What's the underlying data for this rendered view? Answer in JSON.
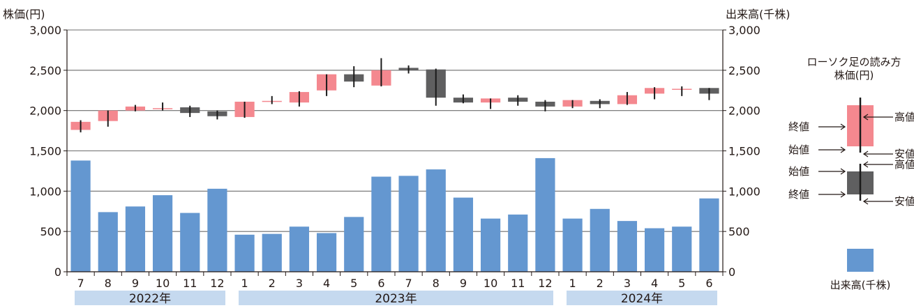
{
  "chart_data": {
    "type": "candlestick+bar",
    "left_axis_title": "株価(円)",
    "right_axis_title": "出来高(千株)",
    "ylim": [
      0,
      3000
    ],
    "yticks": [
      "0",
      "500",
      "1,000",
      "1,500",
      "2,000",
      "2,500",
      "3,000"
    ],
    "ytick_values": [
      0,
      500,
      1000,
      1500,
      2000,
      2500,
      3000
    ],
    "grid": true,
    "months": [
      "7",
      "8",
      "9",
      "10",
      "11",
      "12",
      "1",
      "2",
      "3",
      "4",
      "5",
      "6",
      "7",
      "8",
      "9",
      "10",
      "11",
      "12",
      "1",
      "2",
      "3",
      "4",
      "5",
      "6"
    ],
    "years": [
      {
        "label": "2022年",
        "start": 0,
        "end": 5
      },
      {
        "label": "2023年",
        "start": 6,
        "end": 17
      },
      {
        "label": "2024年",
        "start": 18,
        "end": 23
      }
    ],
    "candles": [
      {
        "open": 1760,
        "close": 1860,
        "high": 1880,
        "low": 1730
      },
      {
        "open": 1870,
        "close": 2000,
        "high": 2000,
        "low": 1800
      },
      {
        "open": 2000,
        "close": 2050,
        "high": 2070,
        "low": 1990
      },
      {
        "open": 2020,
        "close": 2030,
        "high": 2100,
        "low": 2000
      },
      {
        "open": 2040,
        "close": 1970,
        "high": 2060,
        "low": 1920
      },
      {
        "open": 1990,
        "close": 1930,
        "high": 2000,
        "low": 1890
      },
      {
        "open": 1920,
        "close": 2110,
        "high": 2110,
        "low": 1910
      },
      {
        "open": 2120,
        "close": 2120,
        "high": 2180,
        "low": 2080
      },
      {
        "open": 2100,
        "close": 2230,
        "high": 2240,
        "low": 2050
      },
      {
        "open": 2250,
        "close": 2450,
        "high": 2450,
        "low": 2180
      },
      {
        "open": 2450,
        "close": 2360,
        "high": 2550,
        "low": 2290
      },
      {
        "open": 2310,
        "close": 2500,
        "high": 2650,
        "low": 2300
      },
      {
        "open": 2530,
        "close": 2500,
        "high": 2560,
        "low": 2460
      },
      {
        "open": 2510,
        "close": 2160,
        "high": 2520,
        "low": 2060
      },
      {
        "open": 2160,
        "close": 2100,
        "high": 2200,
        "low": 2090
      },
      {
        "open": 2100,
        "close": 2150,
        "high": 2150,
        "low": 2020
      },
      {
        "open": 2160,
        "close": 2110,
        "high": 2190,
        "low": 2060
      },
      {
        "open": 2110,
        "close": 2050,
        "high": 2130,
        "low": 1990
      },
      {
        "open": 2050,
        "close": 2130,
        "high": 2130,
        "low": 2030
      },
      {
        "open": 2120,
        "close": 2080,
        "high": 2140,
        "low": 2030
      },
      {
        "open": 2080,
        "close": 2190,
        "high": 2230,
        "low": 2070
      },
      {
        "open": 2210,
        "close": 2280,
        "high": 2290,
        "low": 2140
      },
      {
        "open": 2260,
        "close": 2270,
        "high": 2300,
        "low": 2180
      },
      {
        "open": 2280,
        "close": 2210,
        "high": 2280,
        "low": 2130
      }
    ],
    "volume": [
      1380,
      740,
      810,
      950,
      730,
      1030,
      460,
      470,
      560,
      480,
      680,
      1180,
      1190,
      1270,
      920,
      660,
      710,
      1410,
      660,
      780,
      630,
      540,
      560,
      910
    ],
    "colors": {
      "up": "#f4888f",
      "down": "#5f5f60",
      "volume": "#6497d0",
      "year_band": "#c5d9ef",
      "grid": "#6d6d6d",
      "wick": "#1a1a1a"
    },
    "legend": {
      "title_line1": "ローソク足の読み方",
      "title_line2": "株価(円)",
      "up_labels": {
        "high": "高値",
        "close": "終値",
        "open": "始値",
        "low": "安値"
      },
      "down_labels": {
        "open": "始値",
        "high": "高値",
        "close": "終値",
        "low": "安値"
      },
      "volume_label": "出来高(千株)"
    }
  }
}
